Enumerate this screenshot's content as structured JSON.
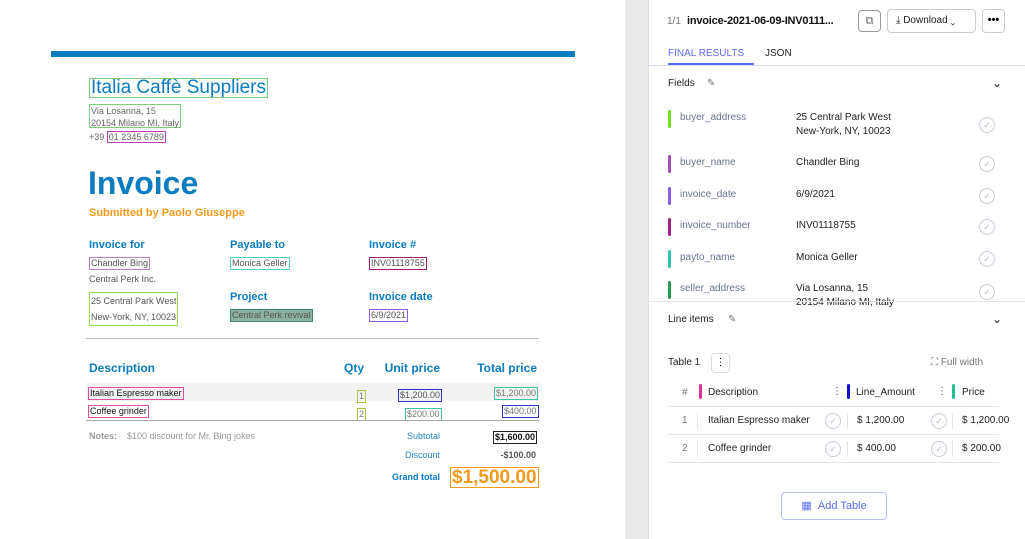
{
  "document": {
    "seller_name": "Italia Caffè Suppliers",
    "seller_address_line1": "Via Losanna, 15",
    "seller_address_line2": "20154 Milano MI, Italy",
    "phone_prefix": "+39",
    "phone": "01 2345 6789",
    "title": "Invoice",
    "submitted_by": "Submitted by Paolo Giuseppe",
    "invoice_for_label": "Invoice for",
    "buyer_name": "Chandler Bing",
    "buyer_company": "Central Perk Inc.",
    "buyer_address_line1": "25 Central Park West",
    "buyer_address_line2": "New-York, NY, 10023",
    "payable_to_label": "Payable to",
    "payto_name": "Monica Geller",
    "project_label": "Project",
    "project": "Central Perk revival",
    "invoice_number_label": "Invoice #",
    "invoice_number": "INV01118755",
    "invoice_date_label": "Invoice date",
    "invoice_date": "6/9/2021",
    "columns": [
      "Description",
      "Qty",
      "Unit price",
      "Total price"
    ],
    "items": [
      {
        "description": "Italian Espresso maker",
        "qty": "1",
        "unit_price": "$1,200.00",
        "total": "$1,200.00"
      },
      {
        "description": "Coffee grinder",
        "qty": "2",
        "unit_price": "$200.00",
        "total": "$400.00"
      }
    ],
    "notes_label": "Notes:",
    "notes": "$100 discount for Mr. Bing jokes",
    "subtotal_label": "Subtotal",
    "subtotal": "$1,600.00",
    "discount_label": "Discount",
    "discount": "-$100.00",
    "grand_total_label": "Grand total",
    "grand_total": "$1,500.00"
  },
  "panel": {
    "page": "1/1",
    "filename": "invoice-2021-06-09-INV0111...",
    "download_label": "Download",
    "tabs": [
      "FINAL RESULTS",
      "JSON"
    ],
    "fields_title": "Fields",
    "fields": [
      {
        "name": "buyer_address",
        "value": "25 Central Park West",
        "value2": "New-York, NY, 10023",
        "color": "#6ee11a"
      },
      {
        "name": "buyer_name",
        "value": "Chandler Bing",
        "color": "#a050b0"
      },
      {
        "name": "invoice_date",
        "value": "6/9/2021",
        "color": "#8a5ce0"
      },
      {
        "name": "invoice_number",
        "value": "INV01118755",
        "color": "#a0208a"
      },
      {
        "name": "payto_name",
        "value": "Monica Geller",
        "color": "#2ec4b0"
      },
      {
        "name": "seller_address",
        "value": "Via Losanna, 15",
        "value2": "20154 Milano MI, Italy",
        "color": "#2a9a50"
      }
    ],
    "line_items_title": "Line items",
    "table_label": "Table 1",
    "full_width_label": "Full width",
    "table_columns": [
      {
        "label": "#"
      },
      {
        "label": "Description",
        "color": "#e0309a"
      },
      {
        "label": "Line_Amount",
        "color": "#1010d0"
      },
      {
        "label": "Price",
        "color": "#20c090"
      }
    ],
    "table_rows": [
      {
        "n": "1",
        "description": "Italian Espresso maker",
        "line_amount": "$ 1,200.00",
        "price": "$ 1,200.00"
      },
      {
        "n": "2",
        "description": "Coffee grinder",
        "line_amount": "$ 400.00",
        "price": "$ 200.00"
      }
    ],
    "add_table_label": "Add Table",
    "accent": "#5a6cf0"
  }
}
